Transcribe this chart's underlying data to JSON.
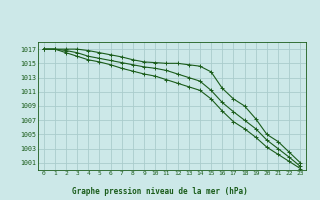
{
  "title": "Graphe pression niveau de la mer (hPa)",
  "background_color": "#cce8e8",
  "grid_color": "#aacccc",
  "line_color": "#1a5c1a",
  "x_labels": [
    "0",
    "1",
    "2",
    "3",
    "4",
    "5",
    "6",
    "7",
    "8",
    "9",
    "10",
    "11",
    "12",
    "13",
    "14",
    "15",
    "16",
    "17",
    "18",
    "19",
    "20",
    "21",
    "22",
    "23"
  ],
  "ylim": [
    1000.0,
    1018.0
  ],
  "yticks": [
    1001,
    1003,
    1005,
    1007,
    1009,
    1011,
    1013,
    1015,
    1017
  ],
  "series1": [
    1017,
    1017,
    1017,
    1017,
    1016.8,
    1016.5,
    1016.2,
    1015.9,
    1015.5,
    1015.2,
    1015.1,
    1015.0,
    1015.0,
    1014.8,
    1014.6,
    1013.8,
    1011.5,
    1010.0,
    1009.0,
    1007.2,
    1005.0,
    1004.0,
    1002.5,
    1001.0
  ],
  "series2": [
    1017,
    1017,
    1016.8,
    1016.5,
    1016.0,
    1015.7,
    1015.4,
    1015.1,
    1014.8,
    1014.5,
    1014.3,
    1014.0,
    1013.5,
    1013.0,
    1012.5,
    1011.2,
    1009.5,
    1008.2,
    1007.0,
    1005.8,
    1004.2,
    1003.0,
    1001.8,
    1000.5
  ],
  "series3": [
    1017,
    1017,
    1016.5,
    1016.0,
    1015.5,
    1015.2,
    1014.8,
    1014.3,
    1013.9,
    1013.5,
    1013.2,
    1012.7,
    1012.2,
    1011.7,
    1011.2,
    1010.0,
    1008.3,
    1006.8,
    1005.8,
    1004.6,
    1003.2,
    1002.2,
    1001.2,
    1000.2
  ]
}
